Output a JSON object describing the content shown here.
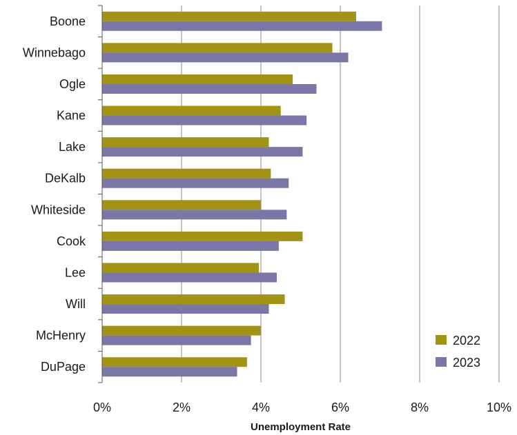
{
  "chart_data": {
    "type": "bar",
    "orientation": "horizontal",
    "categories": [
      "Boone",
      "Winnebago",
      "Ogle",
      "Kane",
      "Lake",
      "DeKalb",
      "Whiteside",
      "Cook",
      "Lee",
      "Will",
      "McHenry",
      "DuPage"
    ],
    "series": [
      {
        "name": "2022",
        "color": "#a39313",
        "values": [
          6.4,
          5.8,
          4.8,
          4.5,
          4.2,
          4.25,
          4.0,
          5.05,
          3.95,
          4.6,
          4.0,
          3.65
        ]
      },
      {
        "name": "2023",
        "color": "#7a76a8",
        "values": [
          7.05,
          6.2,
          5.4,
          5.15,
          5.05,
          4.7,
          4.65,
          4.45,
          4.4,
          4.2,
          3.75,
          3.4
        ]
      }
    ],
    "xlabel": "Unemployment Rate",
    "xlim": [
      0,
      10
    ],
    "xticks": [
      "0%",
      "2%",
      "4%",
      "6%",
      "8%",
      "10%"
    ],
    "grid": true,
    "legend_position": "bottom-right"
  }
}
